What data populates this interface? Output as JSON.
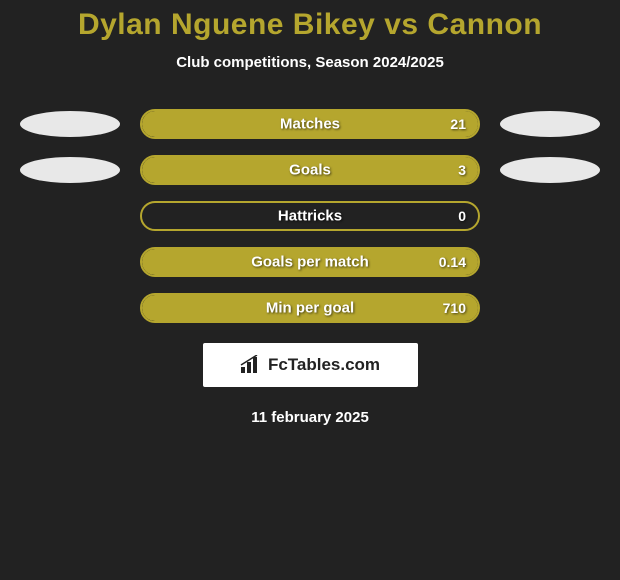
{
  "header": {
    "title": "Dylan Nguene Bikey vs Cannon",
    "subtitle": "Club competitions, Season 2024/2025"
  },
  "chart": {
    "type": "bar",
    "bar_color": "#b5a62e",
    "border_color": "#b5a62e",
    "background_color": "#222222",
    "label_fontsize": 15,
    "value_fontsize": 14,
    "text_color": "#ffffff",
    "rows": [
      {
        "label": "Matches",
        "value": "21",
        "fill_pct": 100,
        "oval_left": true,
        "oval_right": true
      },
      {
        "label": "Goals",
        "value": "3",
        "fill_pct": 100,
        "oval_left": true,
        "oval_right": true
      },
      {
        "label": "Hattricks",
        "value": "0",
        "fill_pct": 0,
        "oval_left": false,
        "oval_right": false
      },
      {
        "label": "Goals per match",
        "value": "0.14",
        "fill_pct": 100,
        "oval_left": false,
        "oval_right": false
      },
      {
        "label": "Min per goal",
        "value": "710",
        "fill_pct": 100,
        "oval_left": false,
        "oval_right": false
      }
    ],
    "oval_color": "#e8e8e8"
  },
  "footer": {
    "logo_text": "FcTables.com",
    "date": "11 february 2025"
  }
}
